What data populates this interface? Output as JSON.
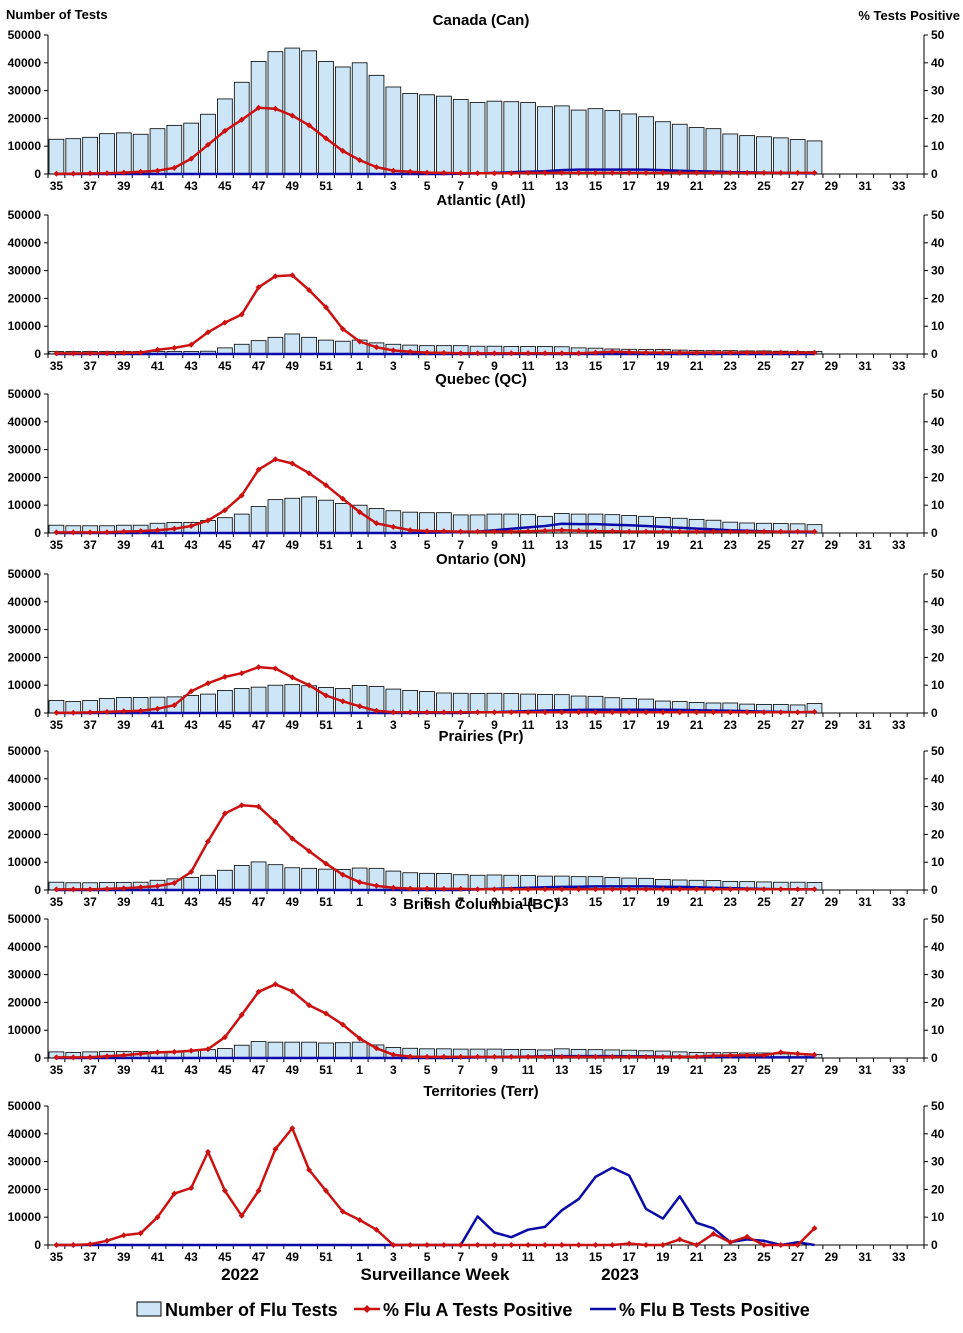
{
  "figure": {
    "left_axis_title": "Number of Tests",
    "right_axis_title": "%  Tests Positive",
    "xlabel": "Surveillance Week",
    "year_labels": [
      "2022",
      "2023"
    ]
  },
  "legend": {
    "tests_label": "Number of Flu Tests",
    "flua_label": "% Flu A Tests Positive",
    "flub_label": "% Flu B Tests Positive"
  },
  "colors": {
    "bar_fill": "#cce6f7",
    "bar_stroke": "#000000",
    "flua": "#cc1111",
    "flub": "#0a0aa8"
  },
  "chart_data": {
    "type": "bar+line",
    "weeks": [
      "35",
      "36",
      "37",
      "38",
      "39",
      "40",
      "41",
      "42",
      "43",
      "44",
      "45",
      "46",
      "47",
      "48",
      "49",
      "50",
      "51",
      "52",
      "1",
      "2",
      "3",
      "4",
      "5",
      "6",
      "7",
      "8",
      "9",
      "10",
      "11",
      "12",
      "13",
      "14",
      "15",
      "16",
      "17",
      "18",
      "19",
      "20",
      "21",
      "22",
      "23",
      "24",
      "25",
      "26",
      "27",
      "28",
      "29",
      "30",
      "31",
      "32",
      "33",
      "34"
    ],
    "x_tick_labels": [
      "35",
      "37",
      "39",
      "41",
      "43",
      "45",
      "47",
      "49",
      "51",
      "1",
      "3",
      "5",
      "7",
      "9",
      "11",
      "13",
      "15",
      "17",
      "19",
      "21",
      "23",
      "25",
      "27",
      "29",
      "31",
      "33"
    ],
    "left_ylim": [
      0,
      50000
    ],
    "left_ticks": [
      "0",
      "10000",
      "20000",
      "30000",
      "40000",
      "50000"
    ],
    "right_ylim": [
      0,
      50
    ],
    "right_ticks": [
      "0",
      "10",
      "20",
      "30",
      "40",
      "50"
    ],
    "panels": [
      {
        "title": "Canada (Can)",
        "tests": [
          12500,
          12700,
          13200,
          14500,
          14800,
          14300,
          16300,
          17500,
          18300,
          21500,
          27000,
          33000,
          40500,
          44000,
          45300,
          44300,
          40500,
          38500,
          40000,
          35500,
          31300,
          29000,
          28500,
          28000,
          26800,
          25700,
          26200,
          26000,
          25700,
          24200,
          24500,
          23000,
          23500,
          22800,
          21600,
          20600,
          18800,
          17900,
          16700,
          16300,
          14400,
          13800,
          13400,
          13000,
          12400,
          11900
        ],
        "flua": [
          0.1,
          0.1,
          0.2,
          0.3,
          0.5,
          0.8,
          1.2,
          2.2,
          5.5,
          10.5,
          15.5,
          19.5,
          23.8,
          23.5,
          21,
          17.5,
          12.8,
          8.3,
          5,
          2.5,
          1.2,
          0.8,
          0.5,
          0.4,
          0.3,
          0.3,
          0.3,
          0.3,
          0.4,
          0.4,
          0.4,
          0.4,
          0.4,
          0.4,
          0.4,
          0.4,
          0.4,
          0.4,
          0.4,
          0.4,
          0.4,
          0.4,
          0.4,
          0.4,
          0.4,
          0.4
        ],
        "flub": [
          0,
          0,
          0,
          0,
          0,
          0,
          0,
          0,
          0,
          0,
          0,
          0,
          0,
          0,
          0,
          0,
          0,
          0,
          0,
          0,
          0,
          0,
          0,
          0,
          0.1,
          0.2,
          0.4,
          0.6,
          0.8,
          1.0,
          1.4,
          1.6,
          1.6,
          1.6,
          1.6,
          1.6,
          1.4,
          1.2,
          1.0,
          0.9,
          0.7,
          0.6,
          0.5,
          0.4,
          0.3,
          0.2
        ]
      },
      {
        "title": "Atlantic (Atl)",
        "tests": [
          900,
          900,
          900,
          900,
          900,
          900,
          900,
          900,
          900,
          1000,
          2200,
          3500,
          4800,
          6000,
          7200,
          6000,
          5000,
          4600,
          5000,
          4000,
          3500,
          3200,
          3000,
          3000,
          3000,
          2800,
          2800,
          2700,
          2700,
          2700,
          2600,
          2200,
          2100,
          1800,
          1700,
          1600,
          1600,
          1400,
          1300,
          1200,
          1200,
          1100,
          1100,
          1000,
          900,
          900
        ],
        "flua": [
          0.2,
          0.2,
          0.2,
          0.3,
          0.4,
          0.5,
          1.5,
          2.2,
          3.3,
          7.8,
          11.3,
          14.2,
          24,
          28,
          28.3,
          23,
          16.8,
          9,
          4.5,
          2.4,
          1.3,
          0.8,
          0.5,
          0.4,
          0.3,
          0.3,
          0.3,
          0.3,
          0.3,
          0.3,
          0.3,
          0.3,
          0.5,
          0.8,
          0.6,
          0.5,
          0.5,
          0.5,
          0.5,
          0.5,
          0.5,
          0.5,
          0.5,
          0.5,
          0.5,
          0.5
        ],
        "flub": [
          0,
          0,
          0,
          0,
          0,
          0,
          0,
          0,
          0,
          0,
          0,
          0,
          0,
          0,
          0,
          0,
          0,
          0,
          0,
          0,
          0,
          0,
          0,
          0,
          0,
          0,
          0,
          0,
          0,
          0,
          0,
          0,
          0,
          0,
          0,
          0,
          0,
          0,
          0,
          0,
          0,
          0,
          0,
          0,
          0,
          0
        ]
      },
      {
        "title": "Quebec (QC)",
        "tests": [
          2800,
          2600,
          2600,
          2600,
          2800,
          2800,
          3500,
          3800,
          3800,
          4500,
          5500,
          6800,
          9500,
          12000,
          12500,
          13000,
          11800,
          10600,
          10000,
          8800,
          8000,
          7500,
          7300,
          7300,
          6500,
          6500,
          6800,
          6800,
          6600,
          6000,
          7000,
          6800,
          6800,
          6600,
          6300,
          6000,
          5600,
          5300,
          4900,
          4600,
          3900,
          3600,
          3500,
          3400,
          3300,
          3000
        ],
        "flua": [
          0.2,
          0.2,
          0.2,
          0.3,
          0.5,
          0.7,
          1,
          1.5,
          2.5,
          4.5,
          8.2,
          13.5,
          22.8,
          26.5,
          25,
          21.5,
          17.2,
          12.3,
          7.5,
          3.5,
          2.2,
          1,
          0.7,
          0.6,
          0.5,
          0.5,
          0.5,
          0.5,
          0.6,
          0.8,
          1,
          0.8,
          0.7,
          0.6,
          0.5,
          0.5,
          0.5,
          0.5,
          0.5,
          0.5,
          0.5,
          0.5,
          0.5,
          0.5,
          0.5,
          0.5
        ],
        "flub": [
          0,
          0,
          0,
          0,
          0,
          0,
          0,
          0,
          0,
          0,
          0,
          0,
          0,
          0,
          0,
          0,
          0,
          0,
          0,
          0,
          0,
          0,
          0.1,
          0.2,
          0.3,
          0.5,
          1,
          1.5,
          2,
          2.5,
          3.3,
          3.2,
          3.2,
          3,
          2.8,
          2.5,
          2.2,
          1.9,
          1.6,
          1.3,
          1.0,
          0.8,
          0.6,
          0.4,
          0.3,
          0.2
        ]
      },
      {
        "title": "Ontario (ON)",
        "tests": [
          4500,
          4100,
          4500,
          5200,
          5600,
          5600,
          5700,
          5800,
          6300,
          6800,
          8100,
          8800,
          9300,
          10000,
          10200,
          9800,
          9200,
          8800,
          9900,
          9500,
          8600,
          8100,
          7700,
          7200,
          7100,
          7000,
          7100,
          7000,
          6800,
          6700,
          6600,
          6100,
          6000,
          5500,
          5200,
          5000,
          4300,
          4100,
          3800,
          3600,
          3600,
          3200,
          3100,
          3100,
          2900,
          3400
        ],
        "flua": [
          0.1,
          0.1,
          0.2,
          0.4,
          0.6,
          0.8,
          1.5,
          2.8,
          7.8,
          10.7,
          13,
          14.3,
          16.5,
          16,
          12.8,
          10,
          6.3,
          4.2,
          2.4,
          0.8,
          0.3,
          0.3,
          0.3,
          0.3,
          0.3,
          0.3,
          0.3,
          0.3,
          0.3,
          0.3,
          0.3,
          0.3,
          0.3,
          0.3,
          0.3,
          0.3,
          0.3,
          0.3,
          0.3,
          0.3,
          0.3,
          0.3,
          0.3,
          0.3,
          0.3,
          0.4
        ],
        "flub": [
          0,
          0,
          0,
          0,
          0,
          0,
          0,
          0,
          0,
          0,
          0,
          0,
          0,
          0,
          0,
          0,
          0,
          0,
          0,
          0,
          0,
          0,
          0,
          0,
          0,
          0.2,
          0.3,
          0.5,
          0.7,
          0.9,
          1.0,
          1.1,
          1.2,
          1.2,
          1.2,
          1.2,
          1.2,
          1.1,
          1.0,
          0.9,
          0.8,
          0.7,
          0.5,
          0.4,
          0.3,
          0.2
        ]
      },
      {
        "title": "Prairies (Pr)",
        "tests": [
          2800,
          2600,
          2600,
          2700,
          2700,
          2800,
          3500,
          4000,
          4500,
          5300,
          7100,
          8800,
          10100,
          9100,
          8000,
          7800,
          7500,
          7400,
          7900,
          7800,
          6800,
          6200,
          6000,
          5900,
          5500,
          5300,
          5400,
          5300,
          5200,
          5000,
          5000,
          4800,
          4800,
          4500,
          4300,
          4200,
          3800,
          3600,
          3500,
          3400,
          3100,
          3000,
          2900,
          2800,
          2800,
          2700
        ],
        "flua": [
          0.2,
          0.2,
          0.2,
          0.4,
          0.6,
          1,
          1.4,
          2.5,
          6.5,
          17.5,
          27.5,
          30.5,
          30,
          24.5,
          18.5,
          14,
          9.5,
          5.5,
          2.8,
          1.5,
          0.8,
          0.5,
          0.5,
          0.4,
          0.4,
          0.3,
          0.3,
          0.3,
          0.3,
          0.3,
          0.3,
          0.3,
          0.3,
          0.3,
          0.3,
          0.3,
          0.3,
          0.3,
          0.3,
          0.3,
          0.3,
          0.3,
          0.3,
          0.3,
          0.3,
          0.3
        ],
        "flub": [
          0,
          0,
          0,
          0,
          0,
          0,
          0,
          0,
          0,
          0,
          0,
          0,
          0,
          0,
          0,
          0,
          0,
          0,
          0,
          0,
          0,
          0,
          0,
          0,
          0,
          0.2,
          0.4,
          0.6,
          0.8,
          1.0,
          1.1,
          1.2,
          1.3,
          1.3,
          1.3,
          1.3,
          1.2,
          1.1,
          1.0,
          0.8,
          0.7,
          0.5,
          0.4,
          0.3,
          0.2,
          0.2
        ]
      },
      {
        "title": "British Columbia (BC)",
        "tests": [
          2200,
          2000,
          2200,
          2300,
          2300,
          2300,
          2300,
          2400,
          2600,
          3000,
          3400,
          4600,
          5900,
          5700,
          5700,
          5700,
          5400,
          5500,
          5700,
          4700,
          3800,
          3500,
          3300,
          3300,
          3200,
          3200,
          3200,
          3100,
          3100,
          2900,
          3300,
          3100,
          3000,
          2900,
          2800,
          2600,
          2500,
          2200,
          2000,
          1900,
          1900,
          1800,
          1800,
          1500,
          1500,
          1300
        ],
        "flua": [
          0.2,
          0.2,
          0.3,
          0.6,
          1,
          1.5,
          2,
          2.2,
          2.6,
          3.2,
          7.5,
          15.5,
          23.8,
          26.5,
          24,
          19,
          16,
          12,
          7,
          3.5,
          1.2,
          0.5,
          0.4,
          0.4,
          0.4,
          0.4,
          0.4,
          0.4,
          0.4,
          0.4,
          0.4,
          0.4,
          0.4,
          0.4,
          0.4,
          0.4,
          0.4,
          0.4,
          0.5,
          0.8,
          0.9,
          1,
          1,
          2,
          1.5,
          1.2
        ],
        "flub": [
          0,
          0,
          0,
          0,
          0,
          0,
          0,
          0,
          0,
          0,
          0,
          0,
          0,
          0,
          0,
          0,
          0,
          0,
          0,
          0,
          0,
          0,
          0,
          0,
          0.1,
          0.2,
          0.3,
          0.4,
          0.5,
          0.6,
          0.7,
          0.7,
          0.7,
          0.7,
          0.6,
          0.6,
          0.5,
          0.5,
          0.4,
          0.4,
          0.3,
          0.3,
          0.2,
          0.2,
          0.2,
          0.2
        ]
      },
      {
        "title": "Territories (Terr)",
        "tests": [],
        "flua": [
          0,
          0,
          0.3,
          1.5,
          3.5,
          4.2,
          10,
          18.5,
          20.5,
          33.5,
          19.5,
          10.5,
          19.5,
          34.5,
          42,
          27,
          19.5,
          12,
          9,
          5.5,
          0,
          0,
          0,
          0,
          0,
          0,
          0,
          0,
          0,
          0,
          0,
          0,
          0,
          0,
          0.5,
          0,
          0,
          2,
          0,
          4,
          1,
          3,
          0,
          0,
          0,
          6
        ],
        "flub": [
          0,
          0,
          0,
          0,
          0,
          0,
          0,
          0,
          0,
          0,
          0,
          0,
          0,
          0,
          0,
          0,
          0,
          0,
          0,
          0,
          0,
          0,
          0,
          0,
          0,
          10.3,
          4.5,
          2.8,
          5.5,
          6.5,
          12.5,
          16.5,
          24.5,
          27.8,
          25,
          13,
          9.5,
          17.5,
          8,
          6,
          1,
          2,
          1.5,
          0,
          1,
          0
        ]
      }
    ]
  }
}
